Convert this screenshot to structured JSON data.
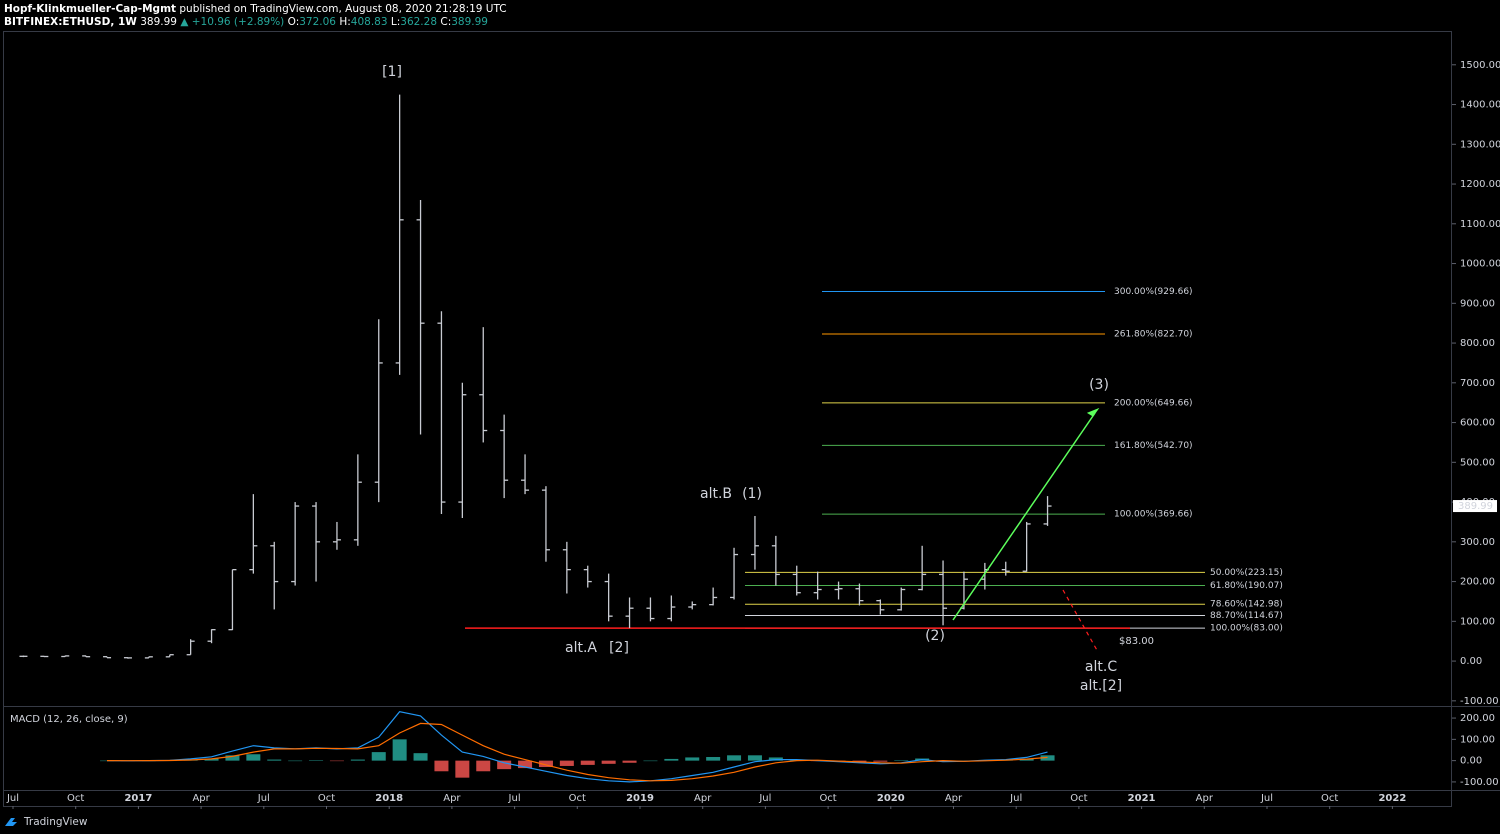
{
  "header": {
    "author": "Hopf-Klinkmueller-Cap-Mgmt",
    "published": "published on TradingView.com, August 08, 2020 21:28:19 UTC",
    "symbol": "BITFINEX:ETHUSD, 1W",
    "last": 389.99,
    "change": "▲ +10.96 (+2.89%)",
    "ohlc": [
      {
        "label": "O:",
        "value": 372.06
      },
      {
        "label": "H:",
        "value": 408.83
      },
      {
        "label": "L:",
        "value": 362.28
      },
      {
        "label": "C:",
        "value": 389.99
      }
    ]
  },
  "footer": {
    "brand": "TradingView"
  },
  "chart_data": [
    {
      "type": "ohlc",
      "color": "#c8cbd2",
      "x": [
        "2016-07",
        "2016-08",
        "2016-09",
        "2016-10",
        "2016-11",
        "2016-12",
        "2017-01",
        "2017-02",
        "2017-03",
        "2017-04",
        "2017-05",
        "2017-06",
        "2017-07",
        "2017-08",
        "2017-09",
        "2017-10",
        "2017-11",
        "2017-12",
        "2018-01",
        "2018-02",
        "2018-03",
        "2018-04",
        "2018-05",
        "2018-06",
        "2018-07",
        "2018-08",
        "2018-09",
        "2018-10",
        "2018-11",
        "2018-12",
        "2019-01",
        "2019-02",
        "2019-03",
        "2019-04",
        "2019-05",
        "2019-06",
        "2019-07",
        "2019-08",
        "2019-09",
        "2019-10",
        "2019-11",
        "2019-12",
        "2020-01",
        "2020-02",
        "2020-03",
        "2020-04",
        "2020-05",
        "2020-06",
        "2020-07",
        "2020-08"
      ],
      "open": [
        12,
        12,
        11.5,
        13,
        11,
        8.5,
        8,
        10.7,
        16,
        50,
        79,
        230,
        290,
        200,
        390,
        300,
        305,
        450,
        750,
        1110,
        850,
        400,
        670,
        580,
        455,
        430,
        280,
        230,
        200,
        113,
        133,
        107,
        136,
        142,
        160,
        268,
        290,
        218,
        172,
        180,
        182,
        152,
        129,
        180,
        218,
        133,
        206,
        230,
        226,
        345
      ],
      "high": [
        14,
        12.5,
        14,
        13,
        11,
        9,
        11,
        16,
        55,
        80,
        230,
        420,
        300,
        400,
        400,
        350,
        520,
        860,
        1425,
        1160,
        880,
        700,
        840,
        620,
        520,
        440,
        300,
        240,
        220,
        160,
        160,
        165,
        150,
        185,
        285,
        365,
        315,
        240,
        225,
        200,
        195,
        155,
        185,
        290,
        253,
        225,
        247,
        250,
        350,
        415
      ],
      "low": [
        10,
        10,
        11,
        10,
        8.5,
        6,
        8,
        10.5,
        16,
        45,
        78,
        220,
        130,
        190,
        200,
        280,
        290,
        400,
        720,
        570,
        370,
        360,
        550,
        410,
        420,
        250,
        170,
        185,
        100,
        83,
        100,
        100,
        130,
        140,
        155,
        230,
        190,
        165,
        155,
        155,
        140,
        117,
        127,
        178,
        90,
        130,
        180,
        215,
        225,
        340
      ],
      "close": [
        12,
        11.5,
        13,
        11,
        8.5,
        8,
        10.7,
        16,
        50,
        79,
        230,
        290,
        200,
        390,
        300,
        305,
        450,
        750,
        1110,
        850,
        400,
        670,
        580,
        455,
        430,
        280,
        230,
        200,
        113,
        133,
        107,
        136,
        142,
        160,
        268,
        290,
        218,
        172,
        180,
        182,
        152,
        129,
        180,
        218,
        133,
        206,
        230,
        226,
        345,
        389.99
      ],
      "xticks": [
        {
          "value": "2016-07",
          "label": "Jul"
        },
        {
          "value": "2016-10",
          "label": "Oct"
        },
        {
          "value": "2017-01",
          "label": "2017"
        },
        {
          "value": "2017-04",
          "label": "Apr"
        },
        {
          "value": "2017-07",
          "label": "Jul"
        },
        {
          "value": "2017-10",
          "label": "Oct"
        },
        {
          "value": "2018-01",
          "label": "2018"
        },
        {
          "value": "2018-04",
          "label": "Apr"
        },
        {
          "value": "2018-07",
          "label": "Jul"
        },
        {
          "value": "2018-10",
          "label": "Oct"
        },
        {
          "value": "2019-01",
          "label": "2019"
        },
        {
          "value": "2019-04",
          "label": "Apr"
        },
        {
          "value": "2019-07",
          "label": "Jul"
        },
        {
          "value": "2019-10",
          "label": "Oct"
        },
        {
          "value": "2020-01",
          "label": "2020"
        },
        {
          "value": "2020-04",
          "label": "Apr"
        },
        {
          "value": "2020-07",
          "label": "Jul"
        },
        {
          "value": "2020-10",
          "label": "Oct"
        },
        {
          "value": "2021-01",
          "label": "2021"
        },
        {
          "value": "2021-04",
          "label": "Apr"
        },
        {
          "value": "2021-07",
          "label": "Jul"
        },
        {
          "value": "2021-10",
          "label": "Oct"
        },
        {
          "value": "2022-01",
          "label": "2022"
        }
      ],
      "ylim": [
        -113,
        1585
      ],
      "yticks": [
        {
          "value": -100,
          "label": "-100.00"
        },
        {
          "value": 0,
          "label": "0.00"
        },
        {
          "value": 100,
          "label": "100.00"
        },
        {
          "value": 200,
          "label": "200.00"
        },
        {
          "value": 300,
          "label": "300.00"
        },
        {
          "value": 400,
          "label": "400.00"
        },
        {
          "value": 500,
          "label": "500.00"
        },
        {
          "value": 600,
          "label": "600.00"
        },
        {
          "value": 700,
          "label": "700.00"
        },
        {
          "value": 800,
          "label": "800.00"
        },
        {
          "value": 900,
          "label": "900.00"
        },
        {
          "value": 1000,
          "label": "1000.00"
        },
        {
          "value": 1100,
          "label": "1100.00"
        },
        {
          "value": 1200,
          "label": "1200.00"
        },
        {
          "value": 1300,
          "label": "1300.00"
        },
        {
          "value": 1400,
          "label": "1400.00"
        },
        {
          "value": 1500,
          "label": "1500.00"
        }
      ],
      "fib_levels": [
        {
          "label": "300.00%(929.66)",
          "value": 929.66,
          "color": "#2196f3"
        },
        {
          "label": "261.80%(822.70)",
          "value": 822.7,
          "color": "#ff9800"
        },
        {
          "label": "200.00%(649.66)",
          "value": 649.66,
          "color": "#e0d34a"
        },
        {
          "label": "161.80%(542.70)",
          "value": 542.7,
          "color": "#4caf50"
        },
        {
          "label": "100.00%(369.66)",
          "value": 369.66,
          "color": "#4caf50"
        },
        {
          "label": "50.00%(223.15)",
          "value": 223.15,
          "color": "#e0d34a"
        },
        {
          "label": "61.80%(190.07)",
          "value": 190.07,
          "color": "#4caf50"
        },
        {
          "label": "78.60%(142.98)",
          "value": 142.98,
          "color": "#e0d34a"
        },
        {
          "label": "88.70%(114.67)",
          "value": 114.67,
          "color": "#d1d4dc"
        },
        {
          "label": "100.00%(83.00)",
          "value": 83.0,
          "color": "#d1d4dc"
        }
      ],
      "support": {
        "value": 83,
        "label": "$83.00",
        "color": "#ff1e1e"
      },
      "annotations": [
        {
          "text": "[1]",
          "color": "#2e8b3a"
        },
        {
          "text": "alt.B",
          "color": "#ff1e1e"
        },
        {
          "text": "(1)",
          "color": "#ff1e1e"
        },
        {
          "text": "(3)",
          "color": "#ff1e1e"
        },
        {
          "text": "(2)",
          "color": "#ff1e1e"
        },
        {
          "text": "alt.A",
          "color": "#ff1e1e"
        },
        {
          "text": "[2]",
          "color": "#2e8b3a"
        },
        {
          "text": "alt.C",
          "color": "#ff1e1e"
        },
        {
          "text": "alt.[2]",
          "color": "#2e8b3a"
        }
      ]
    },
    {
      "type": "macd",
      "title": "MACD (12, 26, close, 9)",
      "x": [
        "2016-07",
        "2016-08",
        "2016-09",
        "2016-10",
        "2016-11",
        "2016-12",
        "2017-01",
        "2017-02",
        "2017-03",
        "2017-04",
        "2017-05",
        "2017-06",
        "2017-07",
        "2017-08",
        "2017-09",
        "2017-10",
        "2017-11",
        "2017-12",
        "2018-01",
        "2018-02",
        "2018-03",
        "2018-04",
        "2018-05",
        "2018-06",
        "2018-07",
        "2018-08",
        "2018-09",
        "2018-10",
        "2018-11",
        "2018-12",
        "2019-01",
        "2019-02",
        "2019-03",
        "2019-04",
        "2019-05",
        "2019-06",
        "2019-07",
        "2019-08",
        "2019-09",
        "2019-10",
        "2019-11",
        "2019-12",
        "2020-01",
        "2020-02",
        "2020-03",
        "2020-04",
        "2020-05",
        "2020-06",
        "2020-07",
        "2020-08"
      ],
      "series": [
        {
          "name": "MACD",
          "color": "#2196f3",
          "values": [
            null,
            null,
            null,
            null,
            0,
            -1,
            0,
            1,
            8,
            18,
            45,
            70,
            60,
            55,
            60,
            55,
            60,
            110,
            230,
            210,
            120,
            40,
            20,
            -10,
            -30,
            -50,
            -70,
            -85,
            -95,
            -100,
            -95,
            -85,
            -70,
            -55,
            -30,
            -5,
            5,
            5,
            0,
            -5,
            -10,
            -15,
            -10,
            5,
            -5,
            -3,
            2,
            5,
            15,
            40
          ]
        },
        {
          "name": "Signal",
          "color": "#ff6d00",
          "values": [
            null,
            null,
            null,
            null,
            0,
            -0.5,
            0,
            0.5,
            3,
            8,
            20,
            40,
            55,
            55,
            58,
            57,
            55,
            70,
            130,
            175,
            170,
            120,
            70,
            30,
            5,
            -20,
            -45,
            -65,
            -80,
            -90,
            -95,
            -93,
            -85,
            -72,
            -55,
            -30,
            -10,
            0,
            2,
            -2,
            -6,
            -10,
            -12,
            -5,
            0,
            -3,
            -1,
            2,
            7,
            15
          ]
        }
      ],
      "histogram": [
        null,
        null,
        null,
        null,
        0,
        -0.5,
        0,
        0.5,
        5,
        10,
        25,
        30,
        5,
        0,
        2,
        -2,
        5,
        40,
        100,
        35,
        -50,
        -80,
        -50,
        -40,
        -35,
        -30,
        -25,
        -20,
        -15,
        -10,
        0,
        8,
        15,
        17,
        25,
        25,
        15,
        5,
        -2,
        -3,
        -4,
        -5,
        2,
        10,
        -5,
        0,
        3,
        3,
        8,
        25
      ],
      "ylim": [
        -138,
        252
      ],
      "yticks": [
        {
          "value": -100,
          "label": "-100.00"
        },
        {
          "value": 0,
          "label": "0.00"
        },
        {
          "value": 100,
          "label": "100.00"
        },
        {
          "value": 200,
          "label": "200.00"
        }
      ]
    }
  ]
}
